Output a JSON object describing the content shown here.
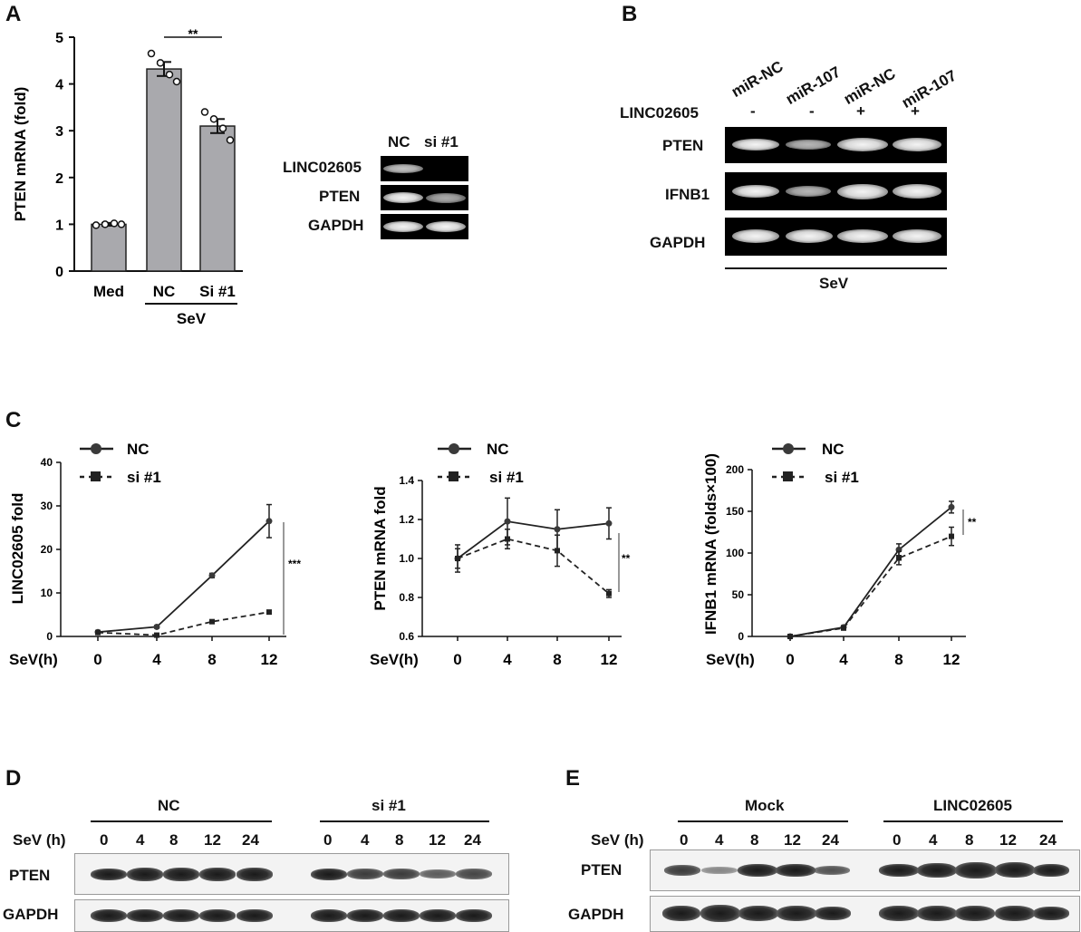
{
  "panel_labels": {
    "a": "A",
    "b": "B",
    "c": "C",
    "d": "D",
    "e": "E"
  },
  "panel_a": {
    "ylabel": "PTEN mRNA (fold)",
    "yticks": [
      "0",
      "1",
      "2",
      "3",
      "4",
      "5"
    ],
    "bars": [
      "Med",
      "NC",
      "Si #1"
    ],
    "group_label": "SeV",
    "significance": "**",
    "gel": {
      "lanes": [
        "NC",
        "si #1"
      ],
      "rows": [
        "LINC02605",
        "PTEN",
        "GAPDH"
      ]
    }
  },
  "panel_b": {
    "lanes": [
      "miR-NC",
      "miR-107",
      "miR-NC",
      "miR-107"
    ],
    "linc_label": "LINC02605",
    "linc_signs": [
      "-",
      "-",
      "+",
      "+"
    ],
    "rows": [
      "PTEN",
      "IFNB1",
      "GAPDH"
    ],
    "bottom_label": "SeV"
  },
  "panel_c": {
    "legend": {
      "nc": "NC",
      "si": "si #1"
    },
    "xlabel": "SeV(h)",
    "xticks": [
      "0",
      "4",
      "8",
      "12"
    ],
    "charts": [
      {
        "ylabel": "LINC02605 fold",
        "yticks": [
          "0",
          "10",
          "20",
          "30",
          "40"
        ],
        "sig": "***"
      },
      {
        "ylabel": "PTEN mRNA fold",
        "yticks": [
          "0.6",
          "0.8",
          "1.0",
          "1.2",
          "1.4"
        ],
        "sig": "**"
      },
      {
        "ylabel": "IFNB1 mRNA (folds×100)",
        "yticks": [
          "0",
          "50",
          "100",
          "150",
          "200"
        ],
        "sig": "**"
      }
    ]
  },
  "panel_d": {
    "groups": [
      "NC",
      "si #1"
    ],
    "time_label": "SeV (h)",
    "times": [
      "0",
      "4",
      "8",
      "12",
      "24"
    ],
    "rows": [
      "PTEN",
      "GAPDH"
    ]
  },
  "panel_e": {
    "groups": [
      "Mock",
      "LINC02605"
    ],
    "time_label": "SeV (h)",
    "times": [
      "0",
      "4",
      "8",
      "12",
      "24"
    ],
    "rows": [
      "PTEN",
      "GAPDH"
    ]
  },
  "chart_data": [
    {
      "type": "bar",
      "categories": [
        "Med",
        "NC",
        "Si #1"
      ],
      "values": [
        1.0,
        4.32,
        3.1
      ],
      "errors": [
        0.03,
        0.15,
        0.15
      ],
      "points": [
        [
          0.98,
          1.0,
          1.02,
          1.0
        ],
        [
          4.65,
          4.45,
          4.2,
          4.05
        ],
        [
          3.4,
          3.25,
          3.05,
          2.8
        ]
      ],
      "ylabel": "PTEN mRNA (fold)",
      "ylim": [
        0,
        5
      ]
    },
    {
      "type": "line",
      "x": [
        0,
        4,
        8,
        12
      ],
      "xlabel": "SeV(h)",
      "ylabel": "LINC02605 fold",
      "ylim": [
        0,
        40
      ],
      "series": [
        {
          "name": "NC",
          "values": [
            1.0,
            2.2,
            14.0,
            26.5
          ],
          "errors": [
            0.3,
            0.3,
            0.5,
            3.8
          ]
        },
        {
          "name": "si #1",
          "values": [
            0.9,
            0.3,
            3.4,
            5.6
          ],
          "errors": [
            0.2,
            0.1,
            0.3,
            0.3
          ]
        }
      ]
    },
    {
      "type": "line",
      "x": [
        0,
        4,
        8,
        12
      ],
      "xlabel": "SeV(h)",
      "ylabel": "PTEN mRNA fold",
      "ylim": [
        0.6,
        1.4
      ],
      "series": [
        {
          "name": "NC",
          "values": [
            1.0,
            1.19,
            1.15,
            1.18
          ],
          "errors": [
            0.07,
            0.12,
            0.1,
            0.08
          ]
        },
        {
          "name": "si #1",
          "values": [
            1.0,
            1.1,
            1.04,
            0.82
          ],
          "errors": [
            0.05,
            0.05,
            0.08,
            0.02
          ]
        }
      ]
    },
    {
      "type": "line",
      "x": [
        0,
        4,
        8,
        12
      ],
      "xlabel": "SeV(h)",
      "ylabel": "IFNB1 mRNA (folds×100)",
      "ylim": [
        0,
        200
      ],
      "series": [
        {
          "name": "NC",
          "values": [
            0,
            11,
            104,
            155
          ],
          "errors": [
            0.5,
            2,
            7,
            7
          ]
        },
        {
          "name": "si #1",
          "values": [
            0,
            10,
            94,
            120
          ],
          "errors": [
            0.5,
            2,
            8,
            11
          ]
        }
      ]
    }
  ]
}
